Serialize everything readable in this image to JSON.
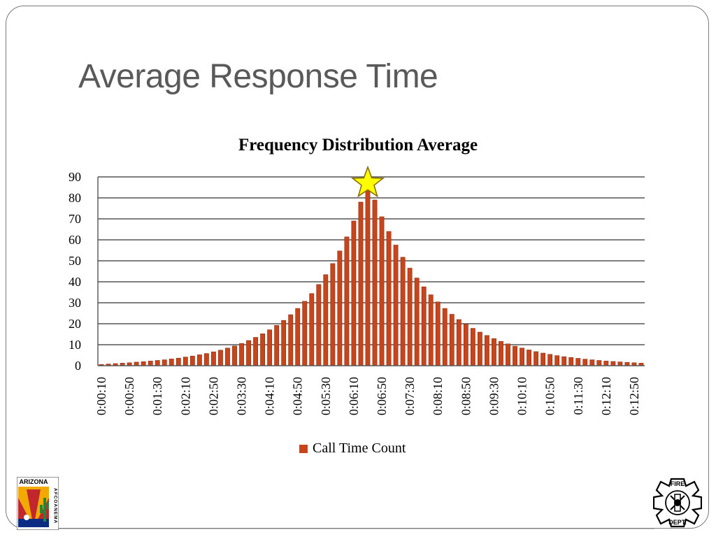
{
  "slide": {
    "title": "Average Response Time"
  },
  "logos": {
    "left": {
      "text_top": "ARIZONA",
      "text_side": "AFCOANEMA"
    },
    "right": {
      "text_top": "FIRE",
      "text_bottom": "DEPT."
    }
  },
  "colors": {
    "bar": "#c8451c",
    "bar_border": "#8a2a0c",
    "star_fill": "#ffff00",
    "star_stroke": "#8a6d00",
    "title": "#595959"
  },
  "chart_data": {
    "type": "bar",
    "title": "Frequency Distribution Average",
    "xlabel": "",
    "ylabel": "",
    "ylim": [
      0,
      90
    ],
    "yticks": [
      0,
      10,
      20,
      30,
      40,
      50,
      60,
      70,
      80,
      90
    ],
    "grid": true,
    "legend_position": "bottom",
    "annotation": "star marker at peak",
    "categories": [
      "0:00:10",
      "0:00:20",
      "0:00:30",
      "0:00:40",
      "0:00:50",
      "0:01:00",
      "0:01:10",
      "0:01:20",
      "0:01:30",
      "0:01:40",
      "0:01:50",
      "0:02:00",
      "0:02:10",
      "0:02:20",
      "0:02:30",
      "0:02:40",
      "0:02:50",
      "0:03:00",
      "0:03:10",
      "0:03:20",
      "0:03:30",
      "0:03:40",
      "0:03:50",
      "0:04:00",
      "0:04:10",
      "0:04:20",
      "0:04:30",
      "0:04:40",
      "0:04:50",
      "0:05:00",
      "0:05:10",
      "0:05:20",
      "0:05:30",
      "0:05:40",
      "0:05:50",
      "0:06:00",
      "0:06:10",
      "0:06:20",
      "0:06:30",
      "0:06:40",
      "0:06:50",
      "0:07:00",
      "0:07:10",
      "0:07:20",
      "0:07:30",
      "0:07:40",
      "0:07:50",
      "0:08:00",
      "0:08:10",
      "0:08:20",
      "0:08:30",
      "0:08:40",
      "0:08:50",
      "0:09:00",
      "0:09:10",
      "0:09:20",
      "0:09:30",
      "0:09:40",
      "0:09:50",
      "0:10:00",
      "0:10:10",
      "0:10:20",
      "0:10:30",
      "0:10:40",
      "0:10:50",
      "0:11:00",
      "0:11:10",
      "0:11:20",
      "0:11:30",
      "0:11:40",
      "0:11:50",
      "0:12:00",
      "0:12:10",
      "0:12:20",
      "0:12:30",
      "0:12:40",
      "0:12:50",
      "0:13:00"
    ],
    "tick_labels": [
      "0:00:10",
      "0:00:50",
      "0:01:30",
      "0:02:10",
      "0:02:50",
      "0:03:30",
      "0:04:10",
      "0:04:50",
      "0:05:30",
      "0:06:10",
      "0:06:50",
      "0:07:30",
      "0:08:10",
      "0:08:50",
      "0:09:30",
      "0:10:10",
      "0:10:50",
      "0:11:30",
      "0:12:10",
      "0:12:50"
    ],
    "series": [
      {
        "name": "Call Time Count",
        "values": [
          0.6,
          0.8,
          1.0,
          1.2,
          1.4,
          1.7,
          1.9,
          2.2,
          2.5,
          2.8,
          3.2,
          3.6,
          4.1,
          4.6,
          5.2,
          5.8,
          6.6,
          7.4,
          8.4,
          9.4,
          10.6,
          12.0,
          13.5,
          15.2,
          17.1,
          19.2,
          21.6,
          24.3,
          27.3,
          30.7,
          34.4,
          38.7,
          43.4,
          48.7,
          54.7,
          61.4,
          69.0,
          78.0,
          85.0,
          79.0,
          71.0,
          64.0,
          57.5,
          51.7,
          46.5,
          41.8,
          37.6,
          33.8,
          30.4,
          27.3,
          24.5,
          22.0,
          19.8,
          17.8,
          16.0,
          14.4,
          12.9,
          11.6,
          10.4,
          9.3,
          8.4,
          7.5,
          6.7,
          6.0,
          5.4,
          4.8,
          4.3,
          3.9,
          3.5,
          3.1,
          2.8,
          2.5,
          2.2,
          2.0,
          1.8,
          1.6,
          1.4,
          1.2
        ]
      }
    ]
  }
}
